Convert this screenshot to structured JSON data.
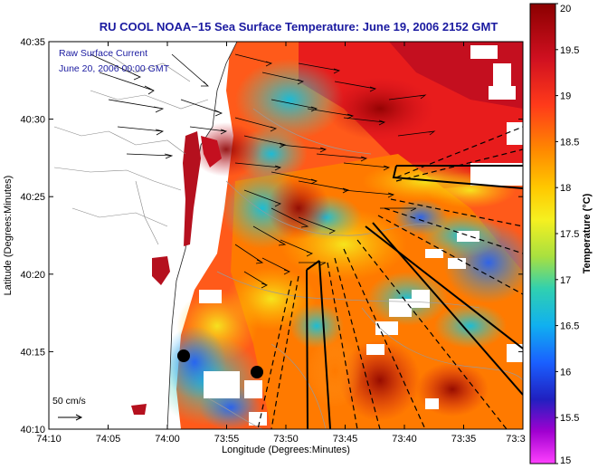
{
  "chart_data": {
    "type": "heatmap",
    "title": "RU COOL  NOAA−15  Sea Surface Temperature:  June 19, 2006 2152 GMT",
    "xlabel": "Longitude (Degrees:Minutes)",
    "ylabel": "Latitude (Degrees:Minutes)",
    "x_ticks": [
      "74:10",
      "74:05",
      "74:00",
      "73:55",
      "73:50",
      "73:45",
      "73:40",
      "73:35",
      "73:3"
    ],
    "y_ticks": [
      "40:35",
      "40:30",
      "40:25",
      "40:20",
      "40:15",
      "40:10"
    ],
    "overlay_labels": [
      "Raw Surface Current",
      "June 20, 2006 00:00 GMT"
    ],
    "vector_scale_label": "50 cm/s",
    "colorbar": {
      "label": "Temperature (°C)",
      "min": 15,
      "max": 20,
      "ticks": [
        "20",
        "19.5",
        "19",
        "18.5",
        "18",
        "17.5",
        "17",
        "16.5",
        "16",
        "15.5",
        "15"
      ],
      "colors": [
        "#8b0000",
        "#c8102e",
        "#ff2a2a",
        "#ff7a00",
        "#ffc000",
        "#f2f21a",
        "#a0e040",
        "#20d0c0",
        "#1a8cff",
        "#2020d0",
        "#8000c0",
        "#ff00ff"
      ]
    }
  }
}
